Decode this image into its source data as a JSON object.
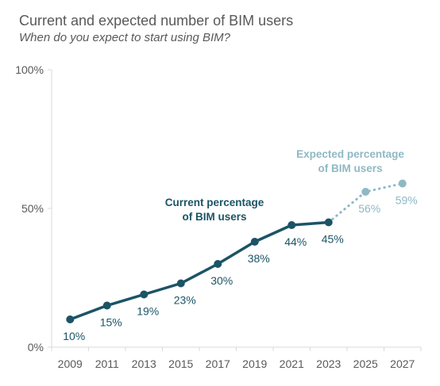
{
  "chart_data": {
    "type": "line",
    "title": "Current and expected number of BIM users",
    "subtitle": "When do you expect to start using BIM?",
    "x": [
      "2009",
      "2011",
      "2013",
      "2015",
      "2017",
      "2019",
      "2021",
      "2023",
      "2025",
      "2027"
    ],
    "y_ticks": [
      "0%",
      "50%",
      "100%"
    ],
    "ylim": [
      0,
      100
    ],
    "grid": false,
    "series": [
      {
        "name": "Current percentage of BIM users",
        "x": [
          "2009",
          "2011",
          "2013",
          "2015",
          "2017",
          "2019",
          "2021",
          "2023"
        ],
        "values": [
          10,
          15,
          19,
          23,
          30,
          38,
          44,
          45
        ],
        "labels": [
          "10%",
          "15%",
          "19%",
          "23%",
          "30%",
          "38%",
          "44%",
          "45%"
        ],
        "color": "#1b5466",
        "line_style": "solid"
      },
      {
        "name": "Expected percentage of BIM users",
        "x": [
          "2023",
          "2025",
          "2027"
        ],
        "values": [
          45,
          56,
          59
        ],
        "labels": [
          "",
          "56%",
          "59%"
        ],
        "color": "#8fb8c4",
        "line_style": "dotted"
      }
    ],
    "annotations": [
      {
        "text_line1": "Current percentage",
        "text_line2": "of BIM users",
        "color": "#1b5466"
      },
      {
        "text_line1": "Expected percentage",
        "text_line2": "of BIM users",
        "color": "#8fb8c4"
      }
    ]
  },
  "colors": {
    "axis": "#d9d9d9",
    "text": "#595959"
  }
}
